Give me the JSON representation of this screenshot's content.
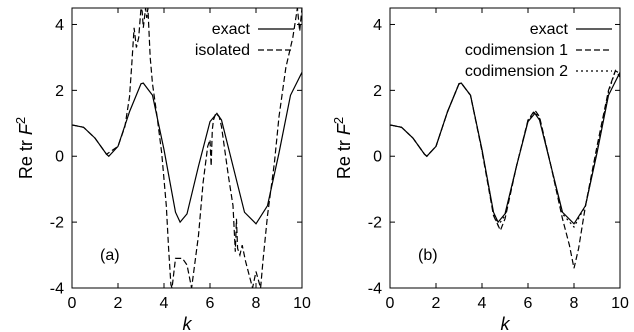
{
  "chart_data": [
    {
      "type": "line",
      "panel_label": "(a)",
      "xlabel": "k",
      "ylabel": "Re tr F^2",
      "xlim": [
        0,
        10
      ],
      "ylim": [
        -4,
        4.5
      ],
      "xticks": [
        "0",
        "2",
        "4",
        "6",
        "8",
        "10"
      ],
      "yticks": [
        "-4",
        "-2",
        "0",
        "2",
        "4"
      ],
      "legend_position": "top-right",
      "grid": false,
      "series": [
        {
          "name": "exact",
          "style": "solid",
          "x": [
            0,
            0.5,
            1,
            1.5,
            1.6,
            2,
            2.5,
            3,
            3.1,
            3.5,
            4,
            4.5,
            4.7,
            5,
            5.5,
            6,
            6.3,
            6.5,
            7,
            7.5,
            8,
            8.5,
            9,
            9.5,
            10
          ],
          "y": [
            0.95,
            0.88,
            0.55,
            0.06,
            0.0,
            0.3,
            1.35,
            2.2,
            2.22,
            1.85,
            0.2,
            -1.7,
            -2.0,
            -1.75,
            -0.3,
            1.05,
            1.3,
            1.1,
            -0.3,
            -1.7,
            -2.05,
            -1.5,
            0.1,
            1.85,
            2.55
          ]
        },
        {
          "name": "isolated",
          "style": "dashed",
          "x": [
            0,
            0.5,
            1,
            1.5,
            2,
            2.3,
            2.5,
            2.6,
            2.7,
            2.8,
            2.9,
            3.0,
            3.05,
            3.1,
            3.2,
            3.25,
            3.3,
            3.4,
            3.5,
            3.7,
            3.9,
            4.1,
            4.2,
            4.3,
            4.35,
            4.5,
            4.8,
            5.0,
            5.2,
            5.5,
            5.7,
            5.9,
            6.0,
            6.05,
            6.1,
            6.15,
            6.25,
            6.4,
            6.5,
            6.8,
            7.0,
            7.1,
            7.15,
            7.2,
            7.3,
            7.4,
            7.55,
            7.7,
            7.85,
            8.0,
            8.2,
            8.3,
            8.5,
            8.8,
            9.0,
            9.3,
            9.6,
            9.8,
            9.9,
            10
          ],
          "y": [
            0.95,
            0.88,
            0.55,
            0.06,
            0.3,
            0.9,
            1.8,
            2.8,
            3.9,
            3.3,
            3.6,
            4.5,
            4.4,
            3.9,
            4.5,
            4.2,
            4.5,
            3.0,
            2.2,
            1.2,
            0.1,
            -1.5,
            -2.8,
            -3.9,
            -4.0,
            -3.1,
            -3.1,
            -3.3,
            -4.0,
            -2.4,
            -0.8,
            0.3,
            0.5,
            -0.3,
            0.8,
            1.1,
            1.3,
            1.2,
            0.9,
            -0.6,
            -1.5,
            -2.9,
            -1.9,
            -2.8,
            -3.0,
            -2.7,
            -3.2,
            -3.6,
            -4.0,
            -3.5,
            -4.0,
            -3.2,
            -1.8,
            -0.2,
            1.2,
            2.7,
            3.6,
            4.5,
            3.8,
            4.5
          ]
        }
      ]
    },
    {
      "type": "line",
      "panel_label": "(b)",
      "xlabel": "k",
      "ylabel": "Re tr F^2",
      "xlim": [
        0,
        10
      ],
      "ylim": [
        -4,
        4.5
      ],
      "xticks": [
        "0",
        "2",
        "4",
        "6",
        "8",
        "10"
      ],
      "yticks": [
        "-4",
        "-2",
        "0",
        "2",
        "4"
      ],
      "legend_position": "top-right",
      "grid": false,
      "series": [
        {
          "name": "exact",
          "style": "solid",
          "x": [
            0,
            0.5,
            1,
            1.5,
            1.6,
            2,
            2.5,
            3,
            3.1,
            3.5,
            4,
            4.5,
            4.7,
            5,
            5.5,
            6,
            6.3,
            6.5,
            7,
            7.5,
            8,
            8.5,
            9,
            9.5,
            10
          ],
          "y": [
            0.95,
            0.88,
            0.55,
            0.06,
            0.0,
            0.3,
            1.35,
            2.2,
            2.22,
            1.85,
            0.2,
            -1.7,
            -2.0,
            -1.75,
            -0.3,
            1.05,
            1.3,
            1.1,
            -0.3,
            -1.7,
            -2.05,
            -1.5,
            0.1,
            1.85,
            2.55
          ]
        },
        {
          "name": "codimension 1",
          "style": "dashed",
          "x": [
            0,
            0.5,
            1,
            1.5,
            1.6,
            2,
            2.5,
            3,
            3.1,
            3.5,
            4,
            4.5,
            4.8,
            5,
            5.5,
            6,
            6.3,
            6.5,
            7,
            7.5,
            7.8,
            8.0,
            8.2,
            8.5,
            9,
            9.5,
            9.8,
            10
          ],
          "y": [
            0.95,
            0.88,
            0.55,
            0.06,
            0.0,
            0.3,
            1.35,
            2.2,
            2.22,
            1.85,
            0.15,
            -1.8,
            -2.25,
            -1.9,
            -0.3,
            1.1,
            1.4,
            1.2,
            -0.3,
            -1.9,
            -2.7,
            -3.4,
            -2.8,
            -1.5,
            0.3,
            2.0,
            2.6,
            2.4
          ]
        },
        {
          "name": "codimension 2",
          "style": "dotted",
          "x": [
            0,
            0.5,
            1,
            1.5,
            1.6,
            2,
            2.5,
            3,
            3.1,
            3.5,
            4,
            4.5,
            4.7,
            5,
            5.5,
            6,
            6.3,
            6.5,
            7,
            7.5,
            8,
            8.5,
            9,
            9.5,
            9.8,
            10
          ],
          "y": [
            0.95,
            0.88,
            0.55,
            0.06,
            0.0,
            0.3,
            1.35,
            2.2,
            2.22,
            1.85,
            0.2,
            -1.75,
            -2.1,
            -1.8,
            -0.3,
            1.08,
            1.35,
            1.15,
            -0.3,
            -1.75,
            -2.15,
            -1.5,
            0.15,
            1.95,
            2.6,
            2.5
          ]
        }
      ]
    }
  ]
}
